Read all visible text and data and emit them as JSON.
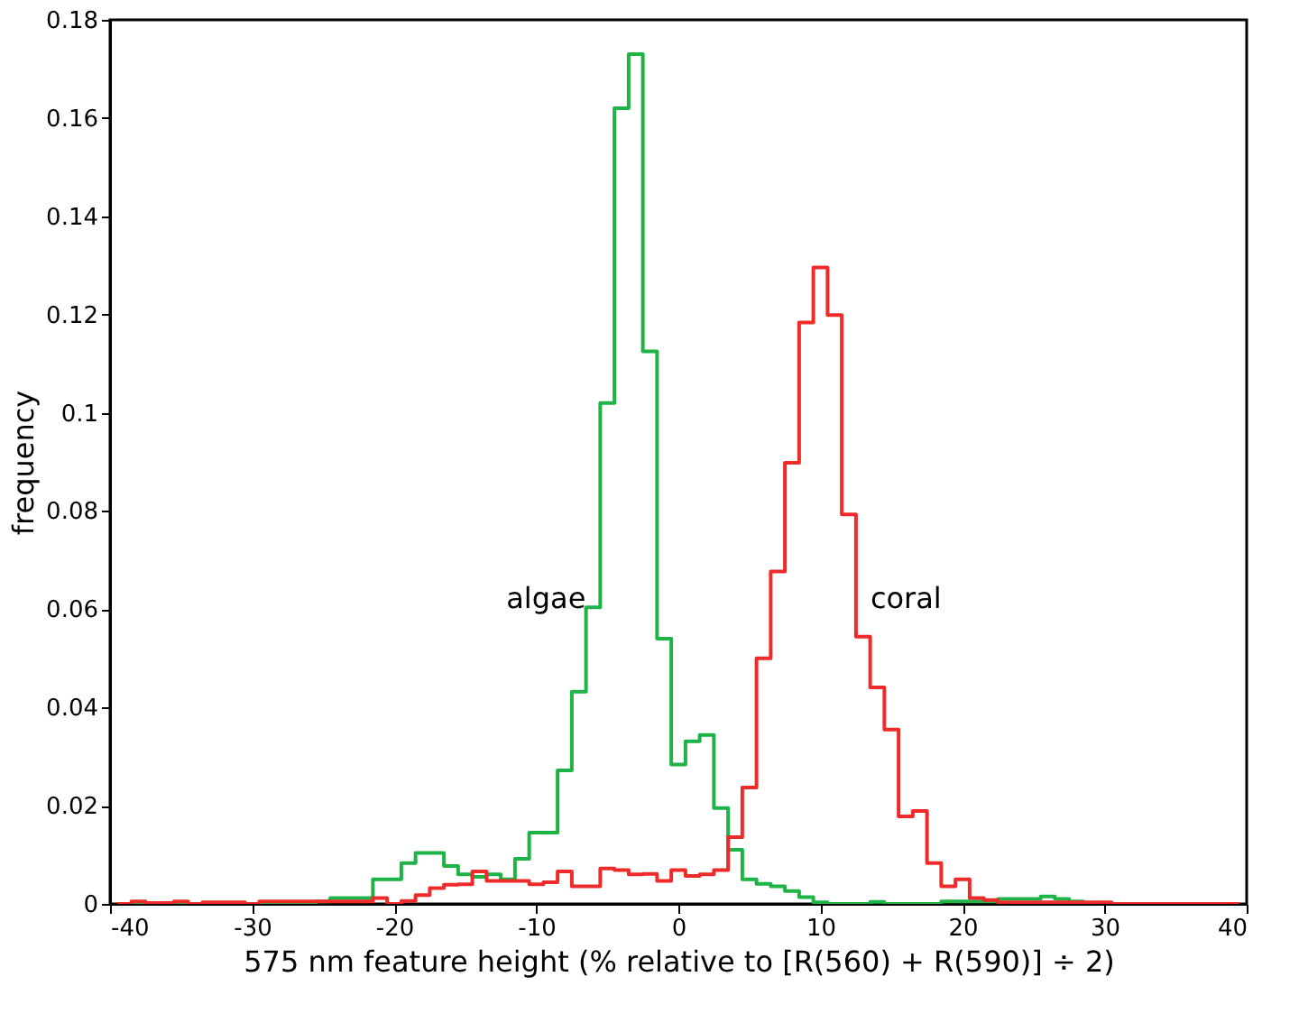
{
  "chart_data": {
    "type": "histogram",
    "xlabel": "575 nm feature height (% relative to [R(560) + R(590)] ÷ 2)",
    "ylabel": "frequency",
    "bins": [
      -39.5,
      -38.5,
      -37.5,
      -36.5,
      -35.5,
      -34.5,
      -33.5,
      -32.5,
      -31.5,
      -30.5,
      -29.5,
      -28.5,
      -27.5,
      -26.5,
      -25.5,
      -24.5,
      -23.5,
      -22.5,
      -21.5,
      -20.5,
      -19.5,
      -18.5,
      -17.5,
      -16.5,
      -15.5,
      -14.5,
      -13.5,
      -12.5,
      -11.5,
      -10.5,
      -9.5,
      -8.5,
      -7.5,
      -6.5,
      -5.5,
      -4.5,
      -3.5,
      -2.5,
      -1.5,
      -0.5,
      0.5,
      1.5,
      2.5,
      3.5,
      4.5,
      5.5,
      6.5,
      7.5,
      8.5,
      9.5,
      10.5,
      11.5,
      12.5,
      13.5,
      14.5,
      15.5,
      16.5,
      17.5,
      18.5,
      19.5,
      20.5,
      21.5,
      22.5,
      23.5,
      24.5,
      25.5,
      26.5,
      27.5,
      28.5,
      29.5,
      30.5,
      31.5,
      32.5,
      33.5,
      34.5,
      35.5,
      36.5,
      37.5,
      38.5,
      39.5
    ],
    "series": [
      {
        "name": "algae",
        "color": "#1db347",
        "values": [
          0,
          0,
          0,
          0,
          0,
          0,
          0,
          0,
          0,
          0,
          0,
          0,
          0,
          0,
          0.0005,
          0.0012,
          0.0012,
          0.0012,
          0.005,
          0.005,
          0.0083,
          0.0104,
          0.0104,
          0.0077,
          0.006,
          0.0055,
          0.006,
          0.005,
          0.0092,
          0.0145,
          0.0145,
          0.0272,
          0.0432,
          0.0604,
          0.102,
          0.162,
          0.173,
          0.1125,
          0.054,
          0.0284,
          0.0331,
          0.0344,
          0.0195,
          0.011,
          0.005,
          0.0041,
          0.0036,
          0.0026,
          0.0014,
          0.0003,
          0,
          0,
          0,
          0.0004,
          0,
          0,
          0,
          0,
          0.0005,
          0.0005,
          0.0005,
          0.0005,
          0.001,
          0.001,
          0.001,
          0.0015,
          0.001,
          0.0005,
          0,
          0,
          0,
          0,
          0,
          0,
          0,
          0,
          0,
          0,
          0
        ]
      },
      {
        "name": "coral",
        "color": "#ee2a2a",
        "values": [
          0,
          0.0005,
          0.0002,
          0.0002,
          0.0005,
          0,
          0.0003,
          0.0003,
          0.0003,
          0,
          0.0005,
          0.0005,
          0.0005,
          0.0005,
          0.0005,
          0.0005,
          0.0005,
          0.0005,
          0.0012,
          0,
          0.0006,
          0.0018,
          0.0032,
          0.0039,
          0.004,
          0.0066,
          0.0047,
          0.0047,
          0.0047,
          0.004,
          0.0044,
          0.0066,
          0.0036,
          0.0036,
          0.0072,
          0.0069,
          0.006,
          0.0061,
          0.0047,
          0.0069,
          0.0057,
          0.006,
          0.0069,
          0.0136,
          0.0237,
          0.05,
          0.0677,
          0.0898,
          0.1184,
          0.1296,
          0.1199,
          0.0793,
          0.0544,
          0.0441,
          0.0355,
          0.0178,
          0.0189,
          0.0083,
          0.0036,
          0.005,
          0.0012,
          0.0008,
          0.0003,
          0.0003,
          0.0003,
          0.0003,
          0.0003,
          0.0003,
          0.0003,
          0.0003,
          0,
          0,
          0,
          0,
          0,
          0,
          0,
          0,
          0
        ]
      }
    ],
    "xlim": [
      -40,
      40
    ],
    "xticks": [
      -40,
      -30,
      -20,
      -10,
      0,
      10,
      20,
      30,
      40
    ],
    "ylim": [
      0,
      0.18
    ],
    "yticks": [
      0,
      0.02,
      0.04,
      0.06,
      0.08,
      0.1,
      0.12,
      0.14,
      0.16,
      0.18
    ],
    "grid": false,
    "legend": false
  }
}
